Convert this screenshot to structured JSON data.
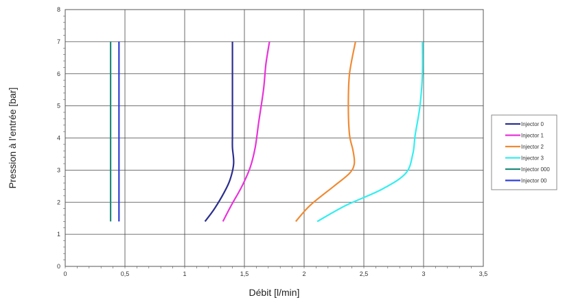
{
  "chart_data": {
    "type": "line",
    "xlabel": "Débit [l/min]",
    "ylabel": "Pression à l’entrée [bar]",
    "xlim": [
      0,
      3.5
    ],
    "ylim": [
      0,
      8
    ],
    "x_ticks": [
      "0",
      "0,5",
      "1",
      "1,5",
      "2",
      "2,5",
      "3",
      "3,5"
    ],
    "y_ticks": [
      "0",
      "1",
      "2",
      "3",
      "4",
      "5",
      "6",
      "7",
      "8"
    ],
    "grid": true,
    "legend_position": "right",
    "series": [
      {
        "name": "Injector 0",
        "color": "#2b2f8c",
        "points": [
          [
            1.17,
            1.4
          ],
          [
            1.25,
            1.8
          ],
          [
            1.33,
            2.3
          ],
          [
            1.38,
            2.7
          ],
          [
            1.41,
            3.2
          ],
          [
            1.4,
            3.7
          ],
          [
            1.4,
            4.1
          ],
          [
            1.4,
            5.0
          ],
          [
            1.4,
            6.0
          ],
          [
            1.4,
            7.0
          ]
        ]
      },
      {
        "name": "Injector 1",
        "color": "#e832d9",
        "points": [
          [
            1.32,
            1.4
          ],
          [
            1.39,
            1.9
          ],
          [
            1.48,
            2.5
          ],
          [
            1.55,
            3.1
          ],
          [
            1.59,
            3.7
          ],
          [
            1.62,
            4.5
          ],
          [
            1.66,
            5.5
          ],
          [
            1.68,
            6.3
          ],
          [
            1.71,
            7.0
          ]
        ]
      },
      {
        "name": "Injector 2",
        "color": "#f08a32",
        "points": [
          [
            1.93,
            1.4
          ],
          [
            2.05,
            1.9
          ],
          [
            2.25,
            2.5
          ],
          [
            2.38,
            2.9
          ],
          [
            2.42,
            3.2
          ],
          [
            2.41,
            3.6
          ],
          [
            2.38,
            4.1
          ],
          [
            2.37,
            5.0
          ],
          [
            2.38,
            6.0
          ],
          [
            2.43,
            7.0
          ]
        ]
      },
      {
        "name": "Injector 3",
        "color": "#33eef0",
        "points": [
          [
            2.11,
            1.4
          ],
          [
            2.35,
            1.9
          ],
          [
            2.65,
            2.4
          ],
          [
            2.85,
            2.9
          ],
          [
            2.91,
            3.5
          ],
          [
            2.93,
            4.1
          ],
          [
            2.97,
            5.0
          ],
          [
            2.99,
            6.0
          ],
          [
            2.99,
            7.0
          ]
        ]
      },
      {
        "name": "Injector 000",
        "color": "#1f8c7a",
        "points": [
          [
            0.38,
            1.4
          ],
          [
            0.38,
            7.0
          ]
        ]
      },
      {
        "name": "Injector 00",
        "color": "#2e3ed6",
        "points": [
          [
            0.45,
            1.4
          ],
          [
            0.45,
            7.0
          ]
        ]
      }
    ]
  }
}
